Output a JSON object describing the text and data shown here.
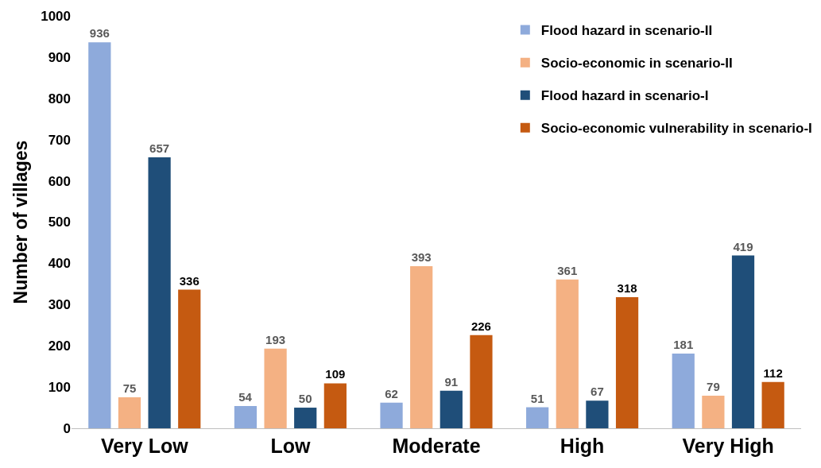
{
  "chart_data": {
    "type": "bar",
    "ylabel": "Number of villages",
    "categories": [
      "Very Low",
      "Low",
      "Moderate",
      "High",
      "Very High"
    ],
    "series": [
      {
        "name": "Flood hazard in scenario-II",
        "color": "#8eaadb",
        "values": [
          936,
          54,
          62,
          51,
          181
        ]
      },
      {
        "name": "Socio-economic in scenario-II",
        "color": "#f4b183",
        "values": [
          75,
          193,
          393,
          361,
          79
        ]
      },
      {
        "name": "Flood hazard in scenario-I",
        "color": "#1f4e79",
        "values": [
          657,
          50,
          91,
          67,
          419
        ]
      },
      {
        "name": "Socio-economic vulnerability in scenario-I",
        "color": "#c55a11",
        "values": [
          336,
          109,
          226,
          318,
          112
        ]
      }
    ],
    "ylim": [
      0,
      1000
    ],
    "yticks": [
      0,
      100,
      200,
      300,
      400,
      500,
      600,
      700,
      800,
      900,
      1000
    ],
    "grid": false,
    "legend": "top right",
    "data_labels": true
  }
}
